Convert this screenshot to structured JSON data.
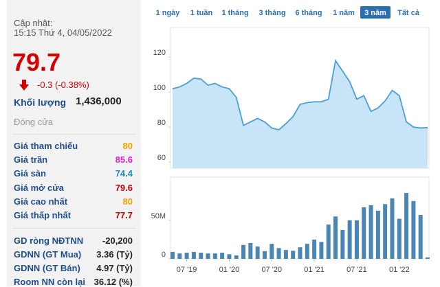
{
  "panel": {
    "updated_label": "Cập nhật:",
    "updated_time": "15:15 Thứ 4, 04/05/2022",
    "price": 79.7,
    "change": "-0.3 (-0.38%)",
    "volume_label": "Khối lượng",
    "volume": "1,436,000",
    "status": "Đóng cửa",
    "prices": [
      {
        "label": "Giá tham chiếu",
        "value": 80,
        "color": "#f0a000"
      },
      {
        "label": "Giá trần",
        "value": 85.6,
        "color": "#e020d8"
      },
      {
        "label": "Giá sàn",
        "value": 74.4,
        "color": "#1a8cb8"
      },
      {
        "label": "Giá mở cửa",
        "value": 79.6,
        "color": "#c00000"
      },
      {
        "label": "Giá cao nhất",
        "value": 80,
        "color": "#f0a000"
      },
      {
        "label": "Giá thấp nhất",
        "value": 77.7,
        "color": "#c00000"
      }
    ],
    "foreign": [
      {
        "label": "GD ròng NĐTNN",
        "value": "-20,200"
      },
      {
        "label": "GDNN (GT Mua)",
        "value": "3.36 (Tỷ)"
      },
      {
        "label": "GDNN (GT Bán)",
        "value": "4.97 (Tỷ)"
      },
      {
        "label": "Room NN còn lại",
        "value": "36.12 (%)"
      }
    ]
  },
  "buttons": [
    {
      "label": "1 ngày"
    },
    {
      "label": "1 tuần"
    },
    {
      "label": "1 tháng"
    },
    {
      "label": "3 tháng"
    },
    {
      "label": "6 tháng"
    },
    {
      "label": "1 năm"
    },
    {
      "label": "3 năm",
      "selected": true
    },
    {
      "label": "Tất cả"
    }
  ],
  "chart_data": [
    {
      "type": "area",
      "color": "#4a9fd8",
      "fill": "#c8e4f7",
      "x": [
        "2019-05",
        "2019-06",
        "2019-07",
        "2019-08",
        "2019-09",
        "2019-10",
        "2019-11",
        "2019-12",
        "2020-01",
        "2020-02",
        "2020-03",
        "2020-04",
        "2020-05",
        "2020-06",
        "2020-07",
        "2020-08",
        "2020-09",
        "2020-10",
        "2020-11",
        "2020-12",
        "2021-01",
        "2021-02",
        "2021-03",
        "2021-04",
        "2021-05",
        "2021-06",
        "2021-07",
        "2021-08",
        "2021-09",
        "2021-10",
        "2021-11",
        "2021-12",
        "2022-01",
        "2022-02",
        "2022-03",
        "2022-04",
        "2022-05"
      ],
      "values": [
        102,
        103,
        105,
        108,
        107.5,
        104,
        105,
        103,
        102,
        97,
        81,
        83,
        85,
        83,
        79.5,
        78.5,
        82,
        86,
        93,
        94,
        94.5,
        94.5,
        96,
        118,
        112,
        106,
        96,
        98,
        89,
        91,
        95,
        101,
        98,
        83,
        80,
        79.5,
        79.7
      ],
      "ylim": [
        56.5,
        137
      ],
      "yticks": [
        60,
        80,
        100,
        120
      ]
    },
    {
      "type": "bar",
      "color": "#4a86b4",
      "x": [
        "2019-05",
        "2019-06",
        "2019-07",
        "2019-08",
        "2019-09",
        "2019-10",
        "2019-11",
        "2019-12",
        "2020-01",
        "2020-02",
        "2020-03",
        "2020-04",
        "2020-05",
        "2020-06",
        "2020-07",
        "2020-08",
        "2020-09",
        "2020-10",
        "2020-11",
        "2020-12",
        "2021-01",
        "2021-02",
        "2021-03",
        "2021-04",
        "2021-05",
        "2021-06",
        "2021-07",
        "2021-08",
        "2021-09",
        "2021-10",
        "2021-11",
        "2021-12",
        "2022-01",
        "2022-02",
        "2022-03",
        "2022-04",
        "2022-05"
      ],
      "values": [
        9000000,
        7000000,
        8000000,
        9000000,
        8000000,
        7000000,
        7000000,
        8000000,
        6000000,
        4500000,
        18000000,
        20500000,
        16000000,
        10000000,
        19500000,
        14000000,
        11500000,
        10500000,
        15000000,
        19500000,
        25000000,
        22000000,
        44500000,
        55000000,
        37500000,
        50000000,
        50000000,
        67000000,
        69500000,
        62500000,
        71000000,
        78500000,
        52000000,
        85500000,
        75000000,
        57000000,
        1800000
      ],
      "ylim": [
        0,
        106000000
      ],
      "yticks": [
        0,
        {
          "value": 50000000,
          "label": "50M"
        }
      ],
      "xticks": [
        {
          "value": "2019-07",
          "label": "07 '19"
        },
        {
          "value": "2020-01",
          "label": "01 '20"
        },
        {
          "value": "2020-07",
          "label": "07 '20"
        },
        {
          "value": "2021-01",
          "label": "01 '21"
        },
        {
          "value": "2021-07",
          "label": "07 '21"
        },
        {
          "value": "2022-01",
          "label": "01 '22"
        }
      ]
    }
  ]
}
